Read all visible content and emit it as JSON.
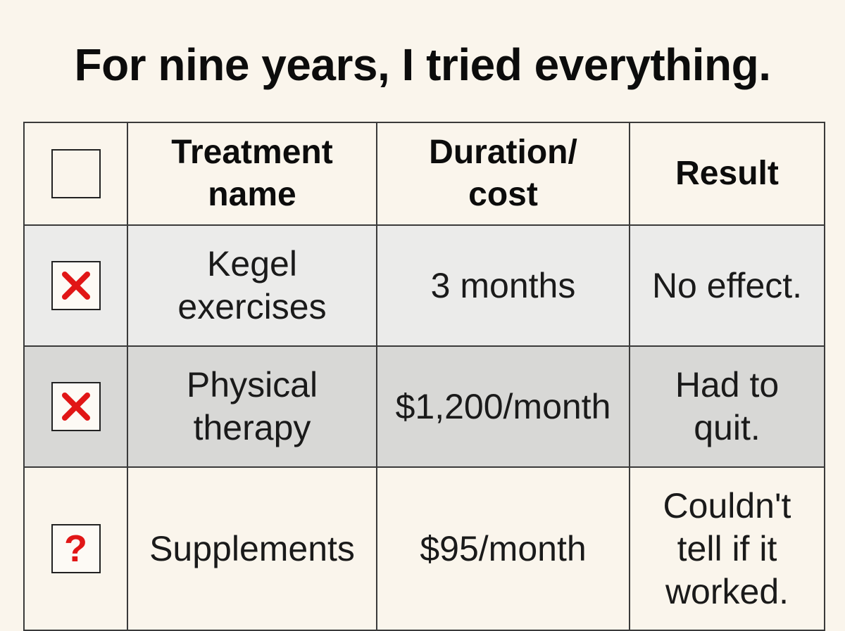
{
  "title": "For nine years, I tried everything.",
  "table": {
    "headers": {
      "treatment_line1": "Treatment",
      "treatment_line2": "name",
      "duration_line1": "Duration/",
      "duration_line2": "cost",
      "result": "Result"
    },
    "rows": [
      {
        "status": "failed",
        "status_icon": "red-x-icon",
        "treatment_line1": "Kegel",
        "treatment_line2": "exercises",
        "duration": "3 months",
        "result_line1": "No effect.",
        "result_line2": "",
        "result_line3": ""
      },
      {
        "status": "failed",
        "status_icon": "red-x-icon",
        "treatment_line1": "Physical",
        "treatment_line2": "therapy",
        "duration": "$1,200/month",
        "result_line1": "Had to",
        "result_line2": "quit.",
        "result_line3": ""
      },
      {
        "status": "unknown",
        "status_icon": "red-question-icon",
        "status_glyph": "?",
        "treatment_line1": "Supplements",
        "treatment_line2": "",
        "duration": "$95/month",
        "result_line1": "Couldn't",
        "result_line2": "tell if it",
        "result_line3": "worked."
      }
    ]
  },
  "colors": {
    "background": "#faf5ec",
    "row_1": "#ebebea",
    "row_2": "#d8d8d6",
    "mark_red": "#e11616",
    "border": "#3a3a3a"
  }
}
